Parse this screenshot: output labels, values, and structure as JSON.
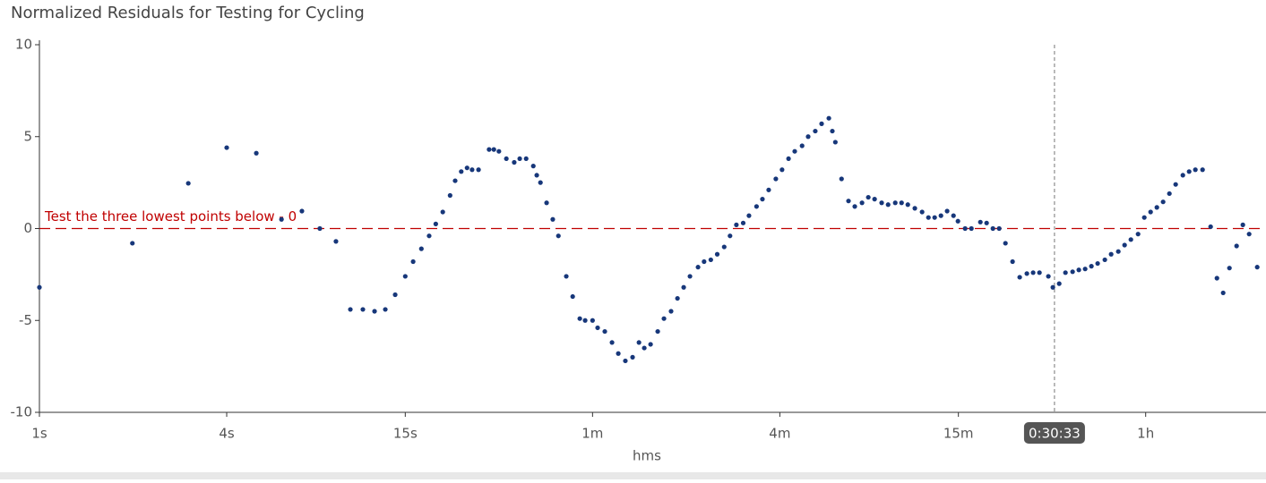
{
  "chart_data": {
    "type": "scatter",
    "title": "Normalized Residuals for Testing for Cycling",
    "x_label": "hms",
    "xscale": "log",
    "xlim": [
      1,
      8600
    ],
    "ylim": [
      -10,
      10
    ],
    "xticks": [
      {
        "value": 1,
        "label": "1s"
      },
      {
        "value": 4,
        "label": "4s"
      },
      {
        "value": 15,
        "label": "15s"
      },
      {
        "value": 60,
        "label": "1m"
      },
      {
        "value": 240,
        "label": "4m"
      },
      {
        "value": 900,
        "label": "15m"
      },
      {
        "value": 3600,
        "label": "1h"
      }
    ],
    "yticks": [
      10,
      5,
      0,
      -5,
      -10
    ],
    "reference_line": {
      "value": 0,
      "label": "Test the three lowest points below - 0",
      "color": "#c00000"
    },
    "crosshair": {
      "x": 1833,
      "label": "0:30:33"
    },
    "series": [
      {
        "color": "#17377a",
        "x": [
          1,
          1.99,
          3.01,
          4,
          4.98,
          6,
          6.98,
          7.97,
          8.98,
          9.99,
          10.96,
          11.95,
          12.94,
          13.92,
          15,
          15.9,
          16.9,
          17.9,
          18.8,
          19.8,
          20.9,
          21.7,
          22.7,
          23.7,
          24.6,
          25.8,
          27.9,
          28.9,
          30,
          31.7,
          33.6,
          35,
          36.7,
          38.7,
          39.7,
          40.8,
          42.7,
          44.7,
          46.6,
          49.4,
          51.8,
          54.6,
          56.8,
          60,
          62.3,
          65.7,
          69.3,
          72.6,
          76.5,
          80.7,
          84.6,
          88,
          92.2,
          97.2,
          101.8,
          107.3,
          112.5,
          117.8,
          123.4,
          131,
          137,
          144,
          151,
          159,
          166,
          174,
          183,
          191,
          202,
          211,
          221,
          233,
          244,
          256,
          268,
          283,
          296,
          312,
          327,
          345,
          354,
          362,
          379,
          399,
          418,
          441,
          462,
          484,
          510,
          535,
          564,
          591,
          619,
          652,
          688,
          721,
          755,
          791,
          828,
          868,
          897,
          946,
          991,
          1059,
          1109,
          1162,
          1217,
          1275,
          1344,
          1417,
          1494,
          1565,
          1640,
          1752,
          1811,
          1898,
          1988,
          2096,
          2195,
          2300,
          2409,
          2523,
          2661,
          2788,
          2940,
          3080,
          3227,
          3403,
          3564,
          3734,
          3911,
          4096,
          4291,
          4495,
          4741,
          4966,
          5201,
          5485,
          5823,
          6101,
          6389,
          6693,
          7057,
          7392,
          7743,
          8220
        ],
        "values": [
          -3.2,
          -0.8,
          2.46,
          4.4,
          4.1,
          0.5,
          0.95,
          0,
          -0.7,
          -4.4,
          -4.4,
          -4.5,
          -4.4,
          -3.6,
          -2.6,
          -1.8,
          -1.1,
          -0.4,
          0.25,
          0.9,
          1.8,
          2.6,
          3.1,
          3.3,
          3.2,
          3.2,
          4.3,
          4.3,
          4.2,
          3.8,
          3.6,
          3.8,
          3.8,
          3.4,
          2.9,
          2.5,
          1.4,
          0.5,
          -0.4,
          -2.6,
          -3.7,
          -4.9,
          -5,
          -5,
          -5.4,
          -5.6,
          -6.2,
          -6.8,
          -7.2,
          -7,
          -6.2,
          -6.5,
          -6.3,
          -5.6,
          -4.9,
          -4.5,
          -3.8,
          -3.2,
          -2.6,
          -2.1,
          -1.8,
          -1.7,
          -1.4,
          -1,
          -0.4,
          0.2,
          0.3,
          0.7,
          1.2,
          1.6,
          2.1,
          2.7,
          3.2,
          3.8,
          4.2,
          4.5,
          5,
          5.3,
          5.7,
          6,
          5.3,
          4.7,
          2.7,
          1.5,
          1.2,
          1.4,
          1.7,
          1.6,
          1.4,
          1.3,
          1.4,
          1.4,
          1.3,
          1.1,
          0.9,
          0.6,
          0.6,
          0.7,
          0.95,
          0.7,
          0.4,
          0,
          0,
          0.35,
          0.3,
          0,
          0,
          -0.8,
          -1.8,
          -2.65,
          -2.45,
          -2.4,
          -2.4,
          -2.6,
          -3.2,
          -3,
          -2.4,
          -2.35,
          -2.25,
          -2.2,
          -2.05,
          -1.9,
          -1.7,
          -1.4,
          -1.25,
          -0.9,
          -0.6,
          -0.3,
          0.6,
          0.9,
          1.15,
          1.45,
          1.9,
          2.4,
          2.9,
          3.1,
          3.2,
          3.2,
          0.1,
          -2.7,
          -3.5,
          -2.15,
          -0.95,
          0.2,
          -0.3,
          -2.1
        ]
      }
    ]
  }
}
